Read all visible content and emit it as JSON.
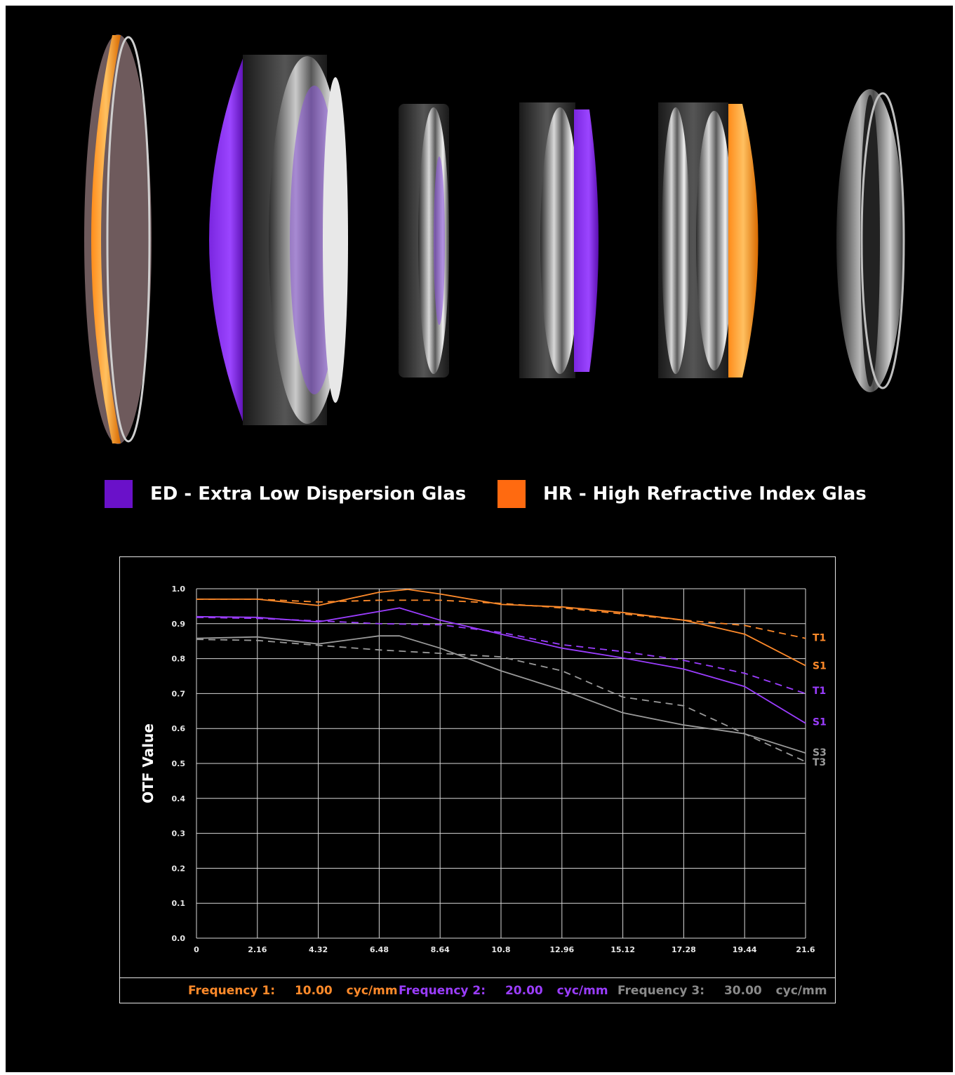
{
  "legend": [
    {
      "label": "ED - Extra Low Dispersion Glas",
      "color": "#6a11c9"
    },
    {
      "label": "HR - High Refractive Index Glas",
      "color": "#ff6a10"
    }
  ],
  "frequencies": [
    {
      "label": "Frequency 1:",
      "value": "10.00",
      "unit": "cyc/mm",
      "color": "#ff8a2a"
    },
    {
      "label": "Frequency 2:",
      "value": "20.00",
      "unit": "cyc/mm",
      "color": "#9b3dff"
    },
    {
      "label": "Frequency 3:",
      "value": "30.00",
      "unit": "cyc/mm",
      "color": "#8a8a8a"
    }
  ],
  "chart_data": {
    "type": "line",
    "ylabel": "OTF Value",
    "xlabel": "",
    "xlim": [
      0,
      21.6
    ],
    "ylim": [
      0,
      1.0
    ],
    "grid": true,
    "x_ticks": [
      "0",
      "2.16",
      "4.32",
      "6.48",
      "8.64",
      "10.8",
      "12.96",
      "15.12",
      "17.28",
      "19.44",
      "21.6"
    ],
    "y_ticks": [
      "0.0",
      "0.1",
      "0.2",
      "0.3",
      "0.4",
      "0.5",
      "0.6",
      "0.7",
      "0.8",
      "0.9",
      "1.0"
    ],
    "series": [
      {
        "name": "S1",
        "color": "#ff8a2a",
        "dash": false,
        "x": [
          0,
          2.16,
          4.32,
          6.48,
          7.5,
          8.64,
          10.8,
          12.96,
          15.12,
          17.28,
          19.44,
          21.6
        ],
        "y": [
          0.97,
          0.97,
          0.952,
          0.99,
          0.998,
          0.985,
          0.955,
          0.948,
          0.932,
          0.91,
          0.87,
          0.78
        ]
      },
      {
        "name": "T1",
        "color": "#ff8a2a",
        "dash": true,
        "x": [
          0,
          2.16,
          4.32,
          6.48,
          8.64,
          10.8,
          12.96,
          15.12,
          17.28,
          19.44,
          21.6
        ],
        "y": [
          0.97,
          0.97,
          0.962,
          0.967,
          0.967,
          0.958,
          0.945,
          0.928,
          0.91,
          0.895,
          0.858
        ]
      },
      {
        "name": "S1",
        "color": "#9b3dff",
        "dash": false,
        "x": [
          0,
          2.16,
          4.32,
          6.48,
          7.2,
          8.64,
          10.8,
          12.96,
          15.12,
          17.28,
          19.44,
          21.6
        ],
        "y": [
          0.92,
          0.918,
          0.905,
          0.935,
          0.945,
          0.91,
          0.87,
          0.83,
          0.802,
          0.77,
          0.72,
          0.615
        ]
      },
      {
        "name": "T1",
        "color": "#9b3dff",
        "dash": true,
        "x": [
          0,
          2.16,
          4.32,
          6.48,
          8.64,
          10.8,
          12.96,
          15.12,
          17.28,
          19.44,
          21.6
        ],
        "y": [
          0.918,
          0.915,
          0.908,
          0.9,
          0.897,
          0.875,
          0.84,
          0.82,
          0.795,
          0.758,
          0.7
        ]
      },
      {
        "name": "S3",
        "color": "#9a9a9a",
        "dash": false,
        "x": [
          0,
          2.16,
          4.32,
          6.48,
          7.2,
          8.64,
          10.8,
          12.96,
          15.12,
          17.28,
          19.44,
          21.6
        ],
        "y": [
          0.858,
          0.862,
          0.842,
          0.865,
          0.865,
          0.83,
          0.765,
          0.71,
          0.645,
          0.61,
          0.585,
          0.53
        ]
      },
      {
        "name": "T3",
        "color": "#9a9a9a",
        "dash": true,
        "x": [
          0,
          2.16,
          4.32,
          6.48,
          8.64,
          10.8,
          12.96,
          15.12,
          17.28,
          19.44,
          21.6
        ],
        "y": [
          0.855,
          0.852,
          0.838,
          0.825,
          0.815,
          0.805,
          0.765,
          0.69,
          0.665,
          0.585,
          0.505
        ]
      }
    ],
    "end_labels": [
      {
        "text": "T1",
        "y": 0.86,
        "color": "#ff8a2a"
      },
      {
        "text": "S1",
        "y": 0.78,
        "color": "#ff8a2a"
      },
      {
        "text": "T1",
        "y": 0.709,
        "color": "#9b3dff"
      },
      {
        "text": "S1",
        "y": 0.619,
        "color": "#9b3dff"
      },
      {
        "text": "S3",
        "y": 0.532,
        "color": "#9a9a9a"
      },
      {
        "text": "T3",
        "y": 0.504,
        "color": "#9a9a9a"
      }
    ]
  }
}
